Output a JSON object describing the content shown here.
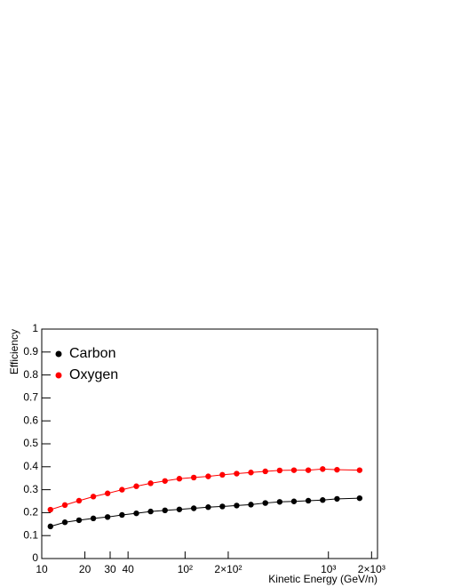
{
  "chart_data": {
    "type": "scatter",
    "x_label": "Kinetic Energy (GeV/n)",
    "y_label": "Efficiency",
    "xlog": true,
    "xlim": [
      10,
      2200
    ],
    "ylim": [
      0,
      1
    ],
    "xticks": [
      10,
      20,
      30,
      40,
      {
        "value": 100,
        "label": "10²"
      },
      {
        "value": 200,
        "label": "2×10²"
      },
      {
        "value": 1000,
        "label": "10³"
      },
      {
        "value": 2000,
        "label": "2×10³"
      }
    ],
    "yticks": [
      0,
      0.1,
      0.2,
      0.3,
      0.4,
      0.5,
      0.6,
      0.7,
      0.8,
      0.9,
      1
    ],
    "legend": "top-left",
    "x": [
      11.5,
      14.5,
      18.2,
      22.9,
      28.8,
      36.3,
      45.7,
      57.5,
      72.4,
      91.2,
      115,
      145,
      182,
      229,
      288,
      363,
      457,
      575,
      724,
      912,
      1148,
      1650
    ],
    "series": [
      {
        "name": "Carbon",
        "color": "#000000",
        "values": [
          0.14,
          0.158,
          0.167,
          0.175,
          0.181,
          0.19,
          0.197,
          0.205,
          0.21,
          0.214,
          0.219,
          0.224,
          0.227,
          0.231,
          0.235,
          0.242,
          0.247,
          0.249,
          0.252,
          0.255,
          0.26,
          0.263
        ]
      },
      {
        "name": "Oxygen",
        "color": "#ff0000",
        "values": [
          0.213,
          0.233,
          0.252,
          0.27,
          0.284,
          0.3,
          0.315,
          0.328,
          0.338,
          0.348,
          0.353,
          0.358,
          0.365,
          0.37,
          0.375,
          0.38,
          0.384,
          0.385,
          0.385,
          0.39,
          0.387,
          0.385
        ]
      }
    ]
  }
}
